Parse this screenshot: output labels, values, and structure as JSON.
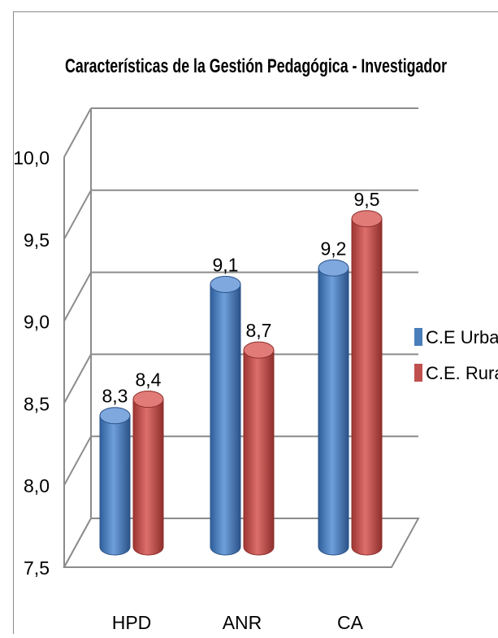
{
  "chart_data": {
    "type": "bar",
    "title": "Características de la Gestión Pedagógica - Investigador",
    "categories": [
      "HPD",
      "ANR",
      "CA"
    ],
    "series": [
      {
        "name": "C.E Urbano",
        "color": "#4a7ebb",
        "values": [
          8.3,
          9.1,
          9.2
        ]
      },
      {
        "name": "C.E. Rural",
        "color": "#c0504d",
        "values": [
          8.4,
          8.7,
          9.5
        ]
      }
    ],
    "data_labels": [
      [
        "8,3",
        "9,1",
        "9,2"
      ],
      [
        "8,4",
        "8,7",
        "9,5"
      ]
    ],
    "yticks": [
      "7,5",
      "8,0",
      "8,5",
      "9,0",
      "9,5",
      "10,0"
    ],
    "ylim": [
      7.5,
      10.0
    ],
    "grid": true,
    "legend_position": "right",
    "style": "3d-cylinder"
  }
}
